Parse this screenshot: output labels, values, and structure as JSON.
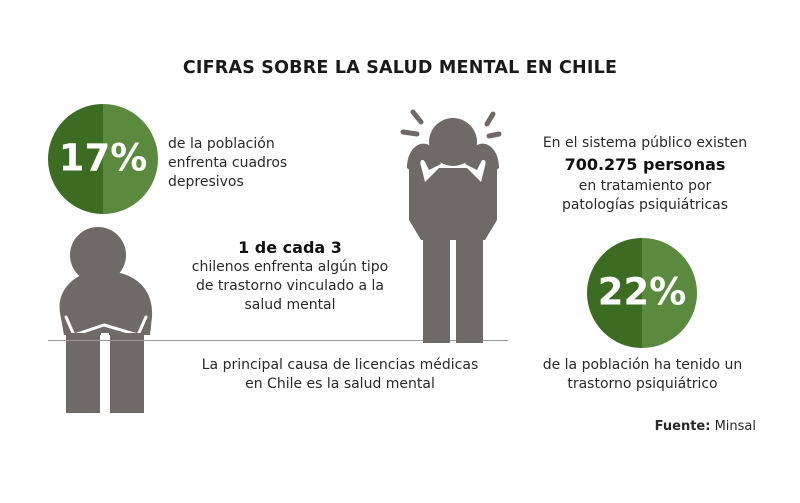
{
  "title": "CIFRAS SOBRE LA SALUD MENTAL EN CHILE",
  "stat1": {
    "percent": "17%",
    "lines": [
      "de la población",
      "enfrenta cuadros",
      "depresivos"
    ]
  },
  "stat2": {
    "headline": "1 de cada 3",
    "lines": [
      "chilenos enfrenta algún tipo",
      "de trastorno vinculado a la",
      "salud mental"
    ]
  },
  "stat3": {
    "line": [
      "La principal causa de licencias médicas",
      "en Chile es la salud mental"
    ]
  },
  "stat4": {
    "intro": "En el sistema público existen",
    "headline": "700.275 personas",
    "lines": [
      "en tratamiento por",
      "patologías psiquiátricas"
    ]
  },
  "stat5": {
    "percent": "22%",
    "lines": [
      "de la población ha tenido un",
      "trastorno psiquiátrico"
    ]
  },
  "source": {
    "label": "Fuente:",
    "value": "Minsal"
  },
  "colors": {
    "green_dark": "#3c6b22",
    "green_light": "#5b8a3f",
    "figure_gray": "#6f6a68"
  }
}
